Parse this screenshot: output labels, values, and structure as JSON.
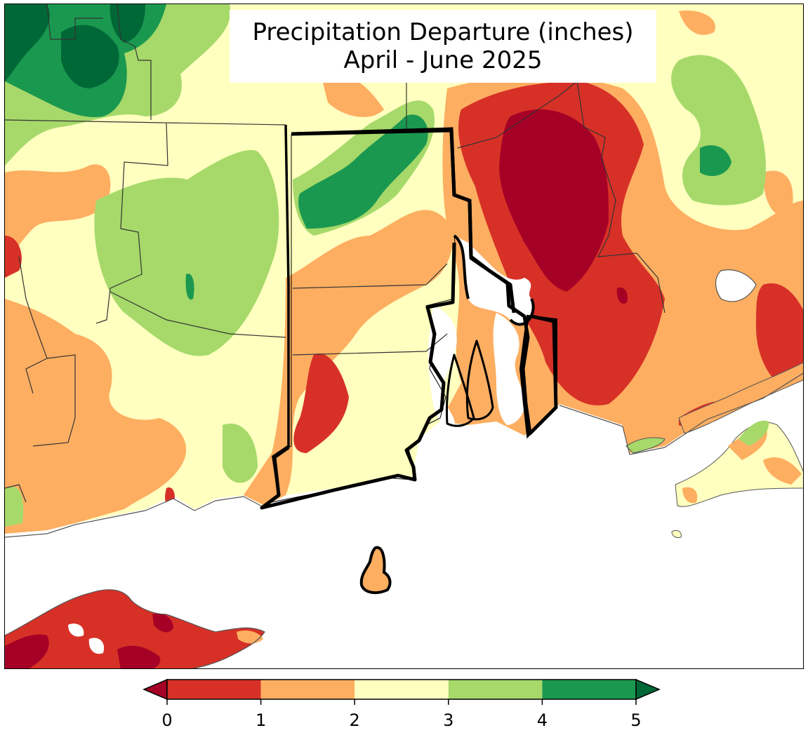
{
  "title": {
    "line1": "Precipitation Departure (inches)",
    "line2": "April - June 2025"
  },
  "legend": {
    "ticks": [
      "0",
      "1",
      "2",
      "3",
      "4",
      "5"
    ],
    "bins": [
      {
        "range": "<0",
        "color": "#a50026"
      },
      {
        "range": "0-1",
        "color": "#d73027"
      },
      {
        "range": "1-2",
        "color": "#fdae61"
      },
      {
        "range": "2-3",
        "color": "#ffffbf"
      },
      {
        "range": "3-4",
        "color": "#a6d96a"
      },
      {
        "range": "4-5",
        "color": "#1a9850"
      },
      {
        "range": ">5",
        "color": "#006837"
      }
    ],
    "extend": "both"
  },
  "map": {
    "region": "Southern New England",
    "highlighted_state": "Rhode Island",
    "colors": {
      "deep_red": "#a50026",
      "red": "#d73027",
      "orange": "#fdae61",
      "pale_yellow": "#ffffbf",
      "light_green": "#a6d96a",
      "green": "#1a9850",
      "dark_green": "#006837",
      "water": "#ffffff"
    }
  }
}
